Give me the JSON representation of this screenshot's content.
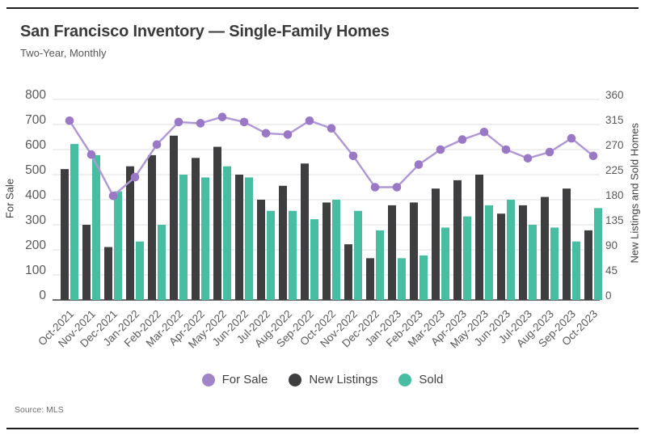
{
  "title": "San Francisco Inventory — Single-Family Homes",
  "subtitle": "Two-Year, Monthly",
  "source_note": "Source: MLS",
  "colors": {
    "for_sale_point": "#9a78c6",
    "for_sale_line": "#af97d6",
    "new_listings": "#3e3e40",
    "sold": "#47bea1",
    "grid": "#dfdfdf",
    "axis_spine": "#404040",
    "tick_text": "#595959"
  },
  "legend": [
    {
      "label": "For Sale",
      "color": "#a084c8"
    },
    {
      "label": "New Listings",
      "color": "#3e3e40"
    },
    {
      "label": "Sold",
      "color": "#47bea1"
    }
  ],
  "chart_data": {
    "type": "bar",
    "subtype": "grouped bars + line overlay, dual y-axes",
    "grid": true,
    "legend_position": "bottom",
    "categories": [
      "Oct-2021",
      "Nov-2021",
      "Dec-2021",
      "Jan-2022",
      "Feb-2022",
      "Mar-2022",
      "Apr-2022",
      "May-2022",
      "Jun-2022",
      "Jul-2022",
      "Aug-2022",
      "Sep-2022",
      "Oct-2022",
      "Nov-2022",
      "Dec-2022",
      "Jan-2023",
      "Feb-2023",
      "Mar-2023",
      "Apr-2023",
      "May-2023",
      "Jun-2023",
      "Jul-2023",
      "Aug-2023",
      "Sep-2023",
      "Oct-2023"
    ],
    "left_axis": {
      "label": "For Sale",
      "range": [
        0,
        800
      ],
      "tick_step": 100
    },
    "right_axis": {
      "label": "New Listings and Sold Homes",
      "range": [
        0,
        360
      ],
      "tick_step": 45
    },
    "series": [
      {
        "name": "For Sale",
        "type": "line",
        "axis": "left",
        "values": [
          715,
          580,
          415,
          490,
          620,
          710,
          705,
          730,
          710,
          665,
          660,
          715,
          685,
          575,
          450,
          450,
          540,
          600,
          640,
          670,
          600,
          565,
          590,
          645,
          575
        ]
      },
      {
        "name": "New Listings",
        "type": "bar",
        "axis": "right",
        "values": [
          235,
          135,
          95,
          240,
          260,
          295,
          255,
          275,
          225,
          180,
          205,
          245,
          175,
          100,
          75,
          170,
          175,
          200,
          215,
          225,
          155,
          170,
          185,
          200,
          125
        ]
      },
      {
        "name": "Sold",
        "type": "bar",
        "axis": "right",
        "values": [
          280,
          260,
          195,
          105,
          135,
          225,
          220,
          240,
          220,
          160,
          160,
          145,
          180,
          160,
          125,
          75,
          80,
          130,
          150,
          170,
          180,
          135,
          130,
          105,
          165
        ]
      }
    ]
  }
}
